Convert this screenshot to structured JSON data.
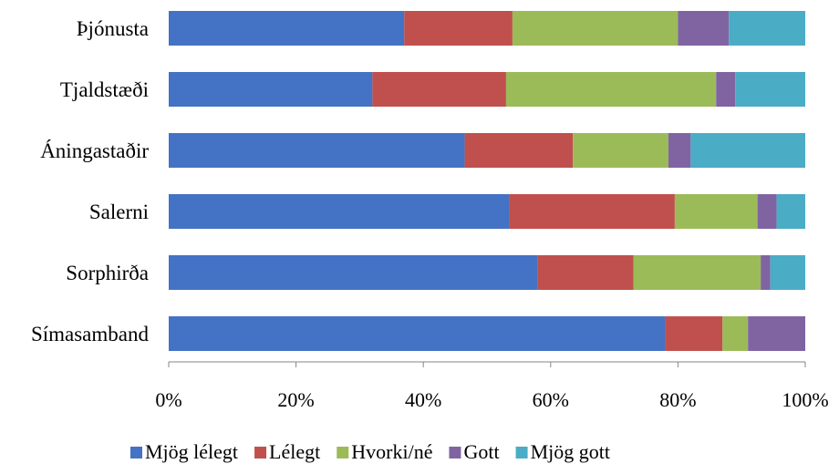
{
  "chart_data": {
    "type": "bar",
    "orientation": "horizontal",
    "stacked": "percent",
    "categories": [
      "Þjónusta",
      "Tjaldstæði",
      "Áningastaðir",
      "Salerni",
      "Sorphirða",
      "Símasamband"
    ],
    "series": [
      {
        "name": "Mjög lélegt",
        "color": "#4472C4",
        "values": [
          37,
          32,
          46.5,
          53.5,
          58,
          78
        ]
      },
      {
        "name": "Lélegt",
        "color": "#C0504D",
        "values": [
          17,
          21,
          17,
          26,
          15,
          9
        ]
      },
      {
        "name": "Hvorki/né",
        "color": "#9BBB59",
        "values": [
          26,
          33,
          15,
          13,
          20,
          4
        ]
      },
      {
        "name": "Gott",
        "color": "#8064A2",
        "values": [
          8,
          3,
          3.5,
          3,
          1.5,
          9
        ]
      },
      {
        "name": "Mjög gott",
        "color": "#4BACC6",
        "values": [
          12,
          11,
          18,
          4.5,
          5.5,
          0
        ]
      }
    ],
    "x_ticks": [
      "0%",
      "20%",
      "40%",
      "60%",
      "80%",
      "100%"
    ],
    "xlim": [
      0,
      100
    ],
    "grid": false,
    "legend": "bottom"
  }
}
